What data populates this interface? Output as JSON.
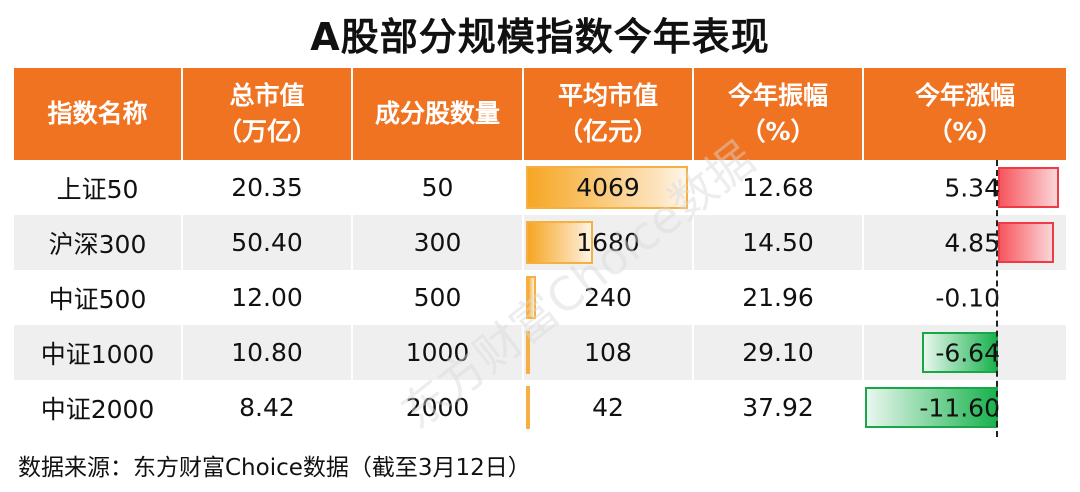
{
  "title": "A股部分规模指数今年表现",
  "headers": {
    "name": "指数名称",
    "mcap": [
      "总市值",
      "（万亿）"
    ],
    "count": "成分股数量",
    "avg": [
      "平均市值",
      "（亿元）"
    ],
    "amp": [
      "今年振幅",
      "（%）"
    ],
    "chg": [
      "今年涨幅",
      "（%）"
    ]
  },
  "rows": [
    {
      "name": "上证50",
      "mcap": "20.35",
      "count": "50",
      "avg": "4069",
      "avg_value": 4069,
      "amp": "12.68",
      "chg": "5.34",
      "chg_value": 5.34
    },
    {
      "name": "沪深300",
      "mcap": "50.40",
      "count": "300",
      "avg": "1680",
      "avg_value": 1680,
      "amp": "14.50",
      "chg": "4.85",
      "chg_value": 4.85
    },
    {
      "name": "中证500",
      "mcap": "12.00",
      "count": "500",
      "avg": "240",
      "avg_value": 240,
      "amp": "21.96",
      "chg": "-0.10",
      "chg_value": -0.1
    },
    {
      "name": "中证1000",
      "mcap": "10.80",
      "count": "1000",
      "avg": "108",
      "avg_value": 108,
      "amp": "29.10",
      "chg": "-6.64",
      "chg_value": -6.64
    },
    {
      "name": "中证2000",
      "mcap": "8.42",
      "count": "2000",
      "avg": "42",
      "avg_value": 42,
      "amp": "37.92",
      "chg": "-11.60",
      "chg_value": -11.6
    }
  ],
  "watermark": "东方财富Choice数据",
  "source": "数据来源：东方财富Choice数据（截至3月12日）",
  "colors": {
    "header_bg": "#f07322",
    "pos_bar": "#ef3b46",
    "neg_bar": "#17a648",
    "avg_bar": "#f6a623",
    "stripe": "#efefef"
  }
}
